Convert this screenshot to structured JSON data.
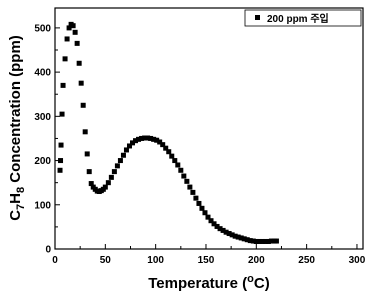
{
  "chart_data": {
    "type": "scatter",
    "xlabel_parts": [
      "Temperature (",
      "o",
      "C)"
    ],
    "ylabel_parts": [
      "C",
      "7",
      "H",
      "8",
      " Concentration (ppm)"
    ],
    "xlim": [
      0,
      306
    ],
    "ylim": [
      0,
      545
    ],
    "xticks": [
      0,
      50,
      100,
      150,
      200,
      250,
      300
    ],
    "yticks": [
      0,
      100,
      200,
      300,
      400,
      500
    ],
    "legend": "top-right",
    "series": [
      {
        "name": "200 ppm 주입",
        "color": "#000000",
        "x": [
          5,
          5.5,
          6,
          7,
          8,
          10,
          12,
          14,
          16,
          18,
          20,
          22,
          24,
          26,
          28,
          30,
          32,
          34,
          36,
          38,
          40,
          42,
          44,
          46,
          48,
          50,
          53,
          56,
          59,
          62,
          65,
          68,
          71,
          74,
          77,
          80,
          83,
          86,
          89,
          92,
          95,
          98,
          101,
          104,
          107,
          110,
          113,
          116,
          119,
          122,
          125,
          128,
          131,
          134,
          137,
          140,
          143,
          146,
          149,
          152,
          155,
          158,
          161,
          164,
          167,
          170,
          173,
          176,
          179,
          182,
          185,
          188,
          191,
          194,
          197,
          200,
          203,
          206,
          209,
          212,
          215,
          218,
          220
        ],
        "values": [
          178,
          200,
          235,
          305,
          370,
          430,
          475,
          500,
          508,
          505,
          490,
          465,
          420,
          375,
          325,
          265,
          215,
          175,
          148,
          140,
          135,
          131,
          130,
          132,
          135,
          140,
          150,
          162,
          175,
          188,
          200,
          212,
          224,
          233,
          240,
          245,
          248,
          250,
          251,
          251,
          250,
          248,
          246,
          242,
          236,
          228,
          220,
          210,
          200,
          190,
          178,
          165,
          153,
          140,
          128,
          115,
          103,
          92,
          82,
          72,
          64,
          57,
          51,
          46,
          42,
          38,
          35,
          32,
          29,
          27,
          25,
          23,
          21,
          19,
          18,
          17,
          17,
          17,
          17,
          17,
          18,
          18,
          18
        ]
      }
    ]
  }
}
